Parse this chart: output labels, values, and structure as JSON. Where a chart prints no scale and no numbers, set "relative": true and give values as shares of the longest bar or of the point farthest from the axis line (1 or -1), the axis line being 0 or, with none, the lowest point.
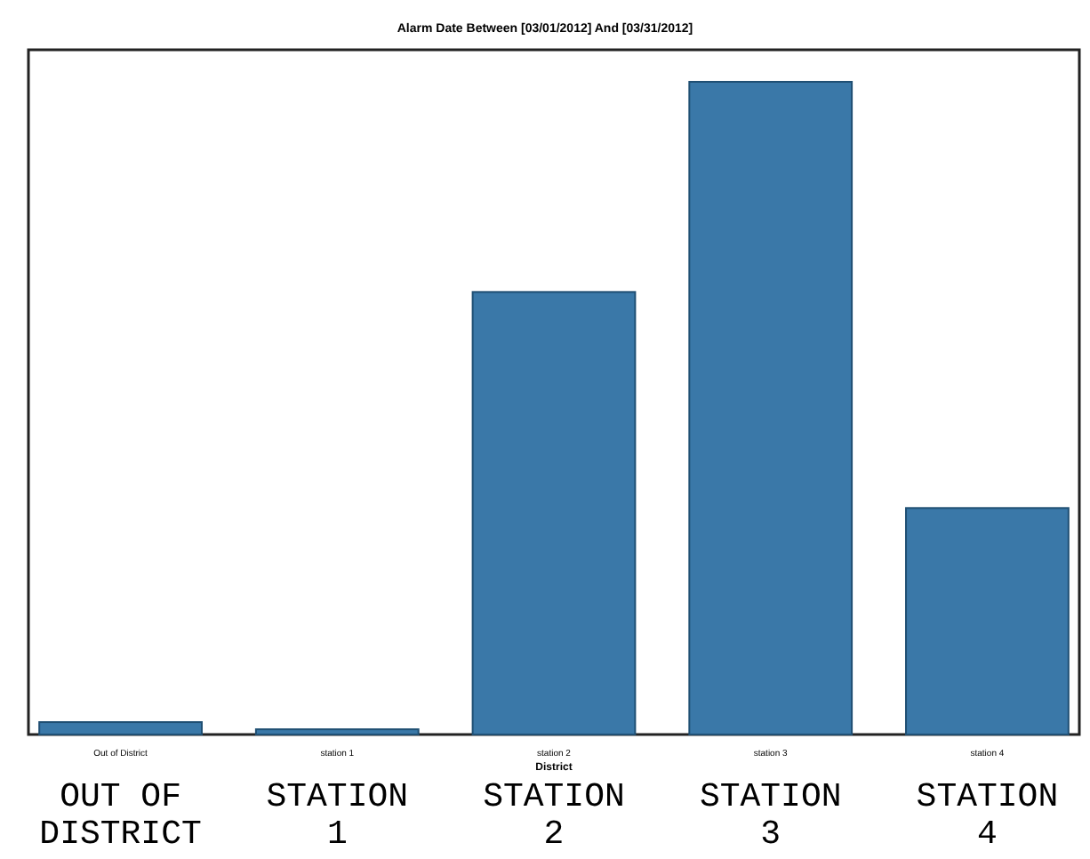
{
  "chart_data": {
    "type": "bar",
    "title": "Alarm Date Between [03/01/2012] And [03/31/2012]",
    "xlabel": "District",
    "categories": [
      "Out of District",
      "station 1",
      "station 2",
      "station 3",
      "station 4"
    ],
    "values": [
      0.019,
      0.008,
      0.678,
      1,
      0.347
    ],
    "color": "#3a78a8",
    "relative": true,
    "annotations": [
      "OUT OF DISTRICT",
      "STATION 1",
      "STATION 2",
      "STATION 3",
      "STATION 4"
    ]
  }
}
